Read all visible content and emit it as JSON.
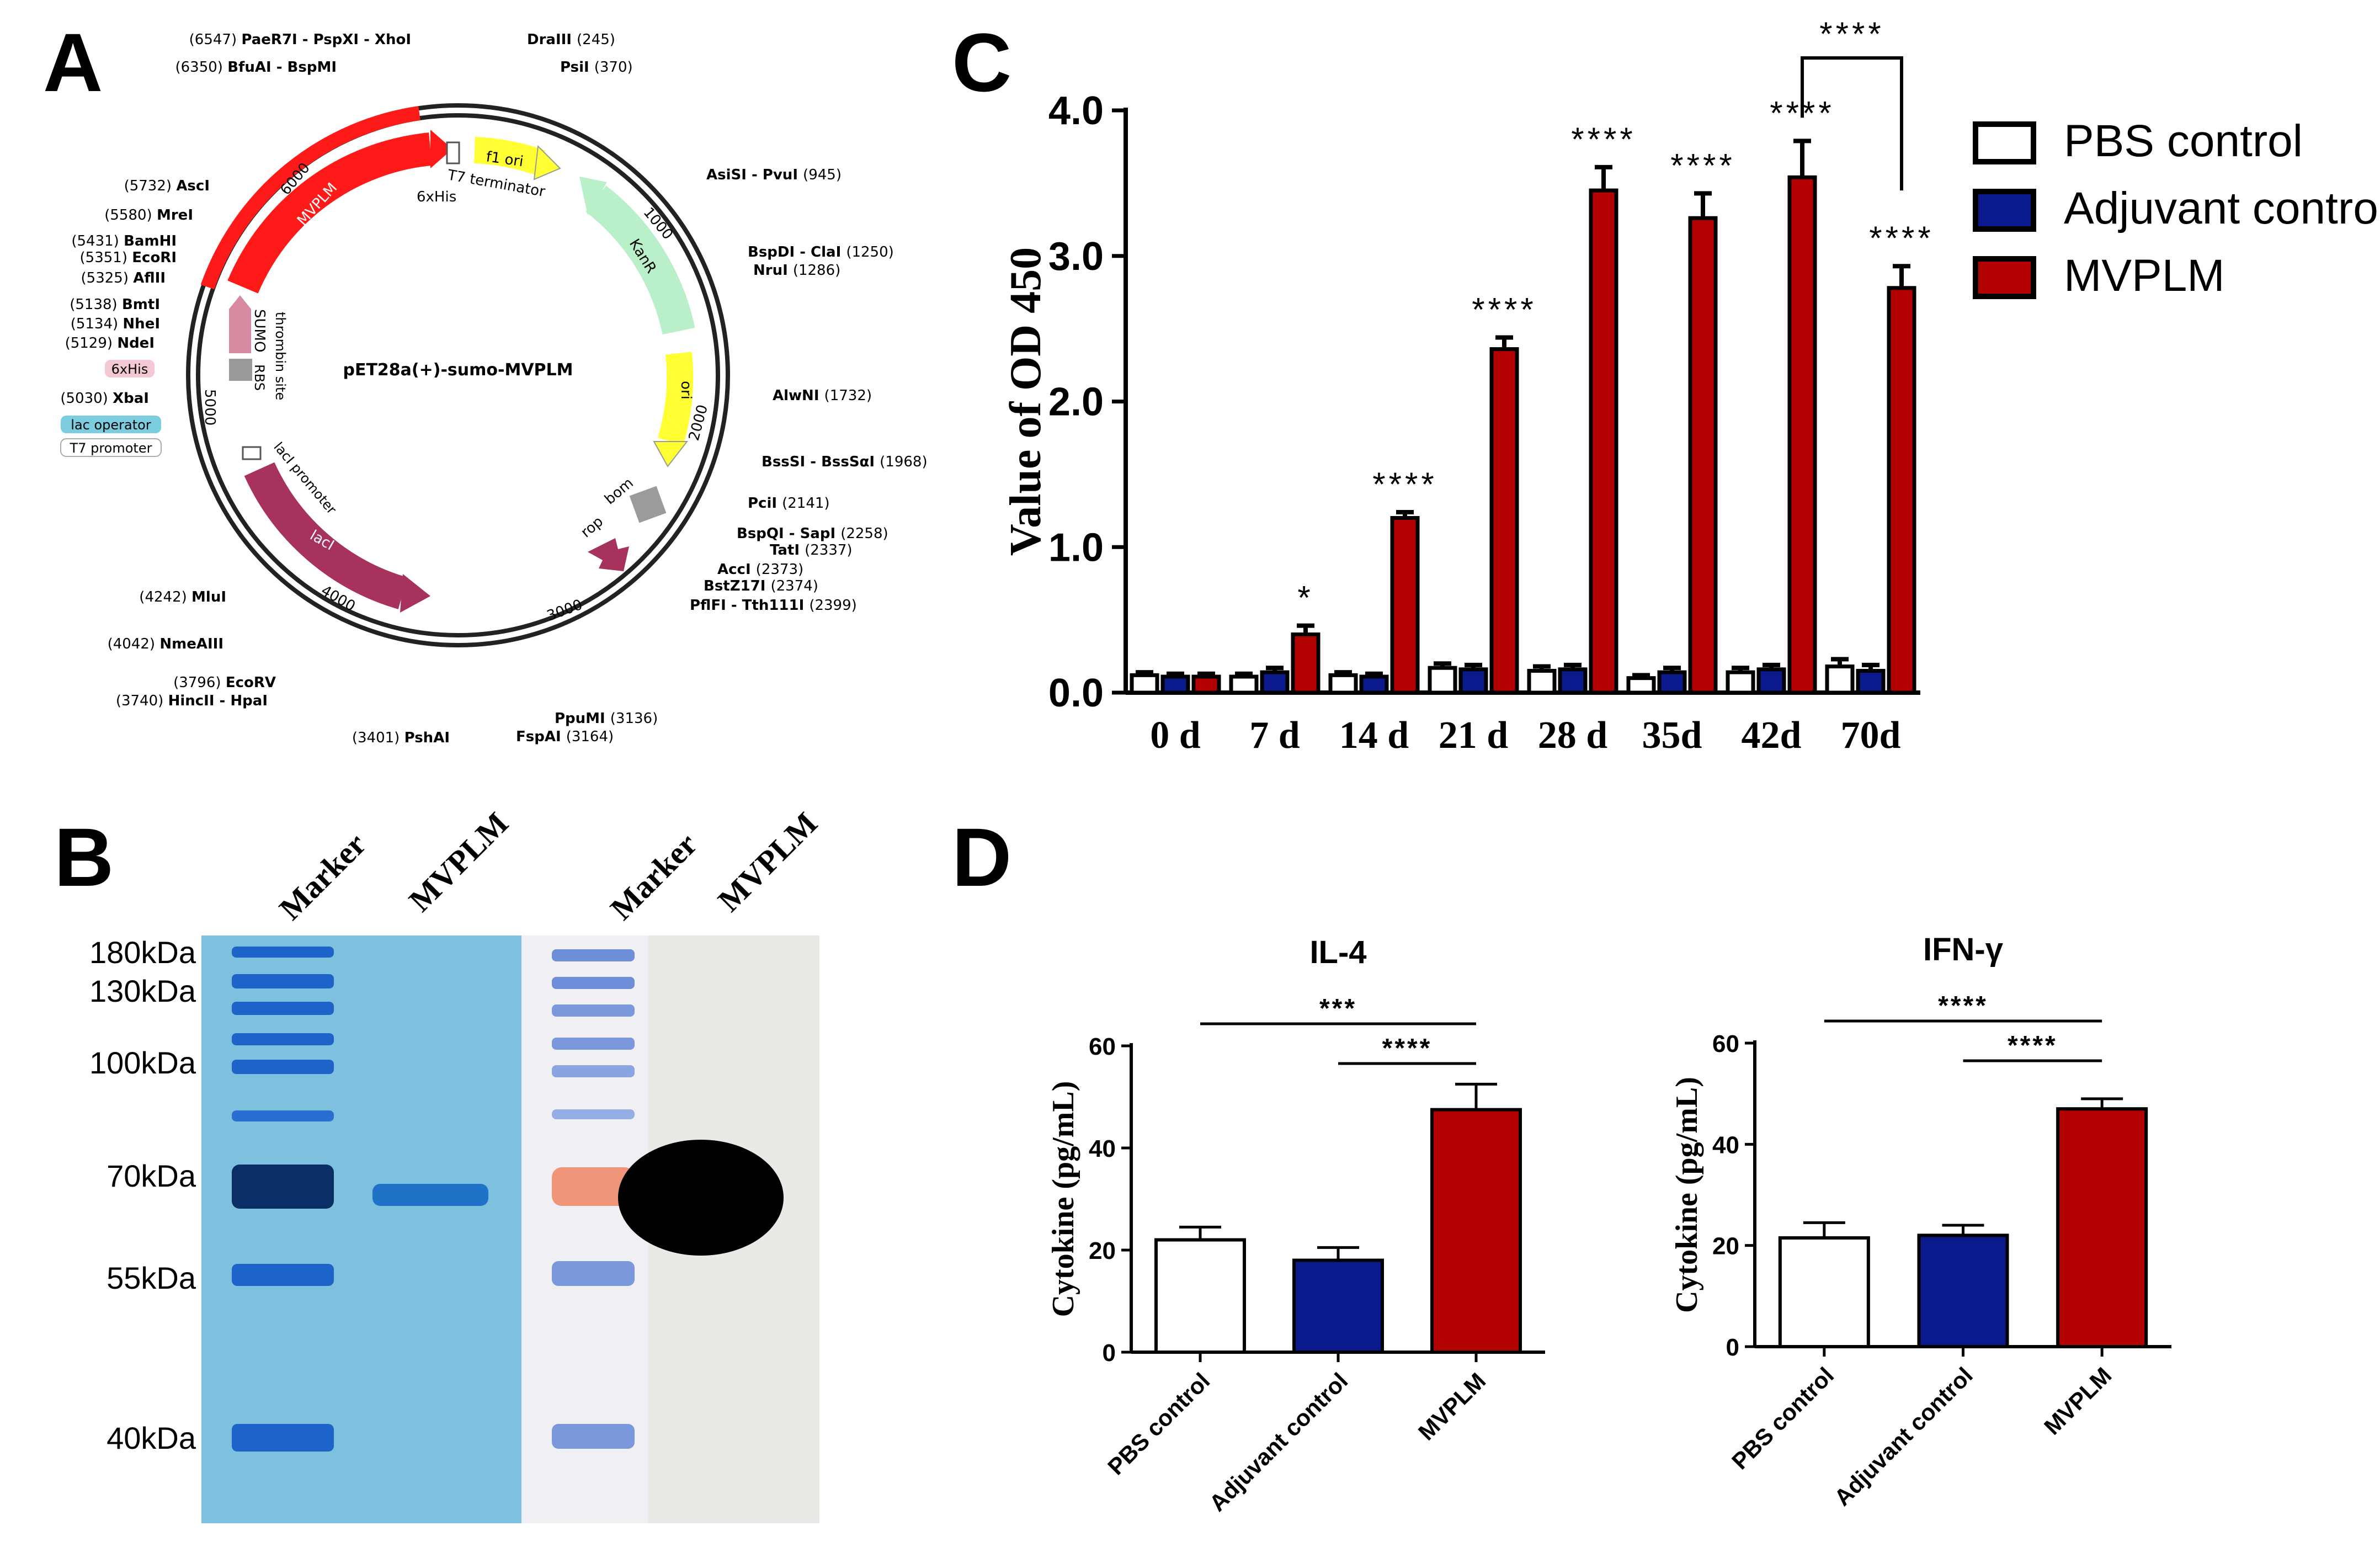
{
  "panels": {
    "A": "A",
    "B": "B",
    "C": "C",
    "D": "D"
  },
  "colors": {
    "pbs": "#ffffff",
    "adjuvant": "#0a1a8c",
    "mvplm": "#b30000",
    "mvplm_feature": "#ff1a1a",
    "kanr": "#b9f0c9",
    "ori": "#ffff33",
    "f1ori": "#ffff33",
    "lacI": "#a8325e",
    "sumo": "#d88aa0",
    "gel_bg": "#7dc1de",
    "gel_band": "#1e64c8",
    "wb_bg": "#ebe9e6"
  },
  "plasmid": {
    "name": "pET28a(+)-sumo-MVPLM",
    "features": [
      {
        "label": "MVPLM"
      },
      {
        "label": "f1 ori"
      },
      {
        "label": "KanR"
      },
      {
        "label": "ori"
      },
      {
        "label": "lacI"
      },
      {
        "label": "rop"
      },
      {
        "label": "bom"
      },
      {
        "label": "SUMO"
      },
      {
        "label": "thrombin site"
      },
      {
        "label": "RBS"
      },
      {
        "label": "T7 terminator"
      },
      {
        "label": "6xHis"
      },
      {
        "label": "lacI promoter"
      }
    ],
    "ticks": [
      "1000",
      "2000",
      "3000",
      "4000",
      "5000",
      "6000"
    ],
    "sites_right": [
      {
        "pos": "(245)",
        "name": "DraIII"
      },
      {
        "pos": "(370)",
        "name": "PsiI"
      },
      {
        "pos": "(945)",
        "name": "AsiSI - PvuI"
      },
      {
        "pos": "(1250)",
        "name": "BspDI - ClaI"
      },
      {
        "pos": "(1286)",
        "name": "NruI"
      },
      {
        "pos": "(1732)",
        "name": "AlwNI"
      },
      {
        "pos": "(1968)",
        "name": "BssSI - BssSαI"
      },
      {
        "pos": "(2141)",
        "name": "PciI"
      },
      {
        "pos": "(2258)",
        "name": "BspQI - SapI"
      },
      {
        "pos": "(2337)",
        "name": "TatI"
      },
      {
        "pos": "(2373)",
        "name": "AccI"
      },
      {
        "pos": "(2374)",
        "name": "BstZ17I"
      },
      {
        "pos": "(2399)",
        "name": "PflFI - Tth111I"
      },
      {
        "pos": "(3136)",
        "name": "PpuMI"
      },
      {
        "pos": "(3164)",
        "name": "FspAI"
      }
    ],
    "sites_left": [
      {
        "pos": "(6547)",
        "name": "PaeR7I - PspXI - XhoI"
      },
      {
        "pos": "(6350)",
        "name": "BfuAI - BspMI"
      },
      {
        "pos": "(5732)",
        "name": "AscI"
      },
      {
        "pos": "(5580)",
        "name": "MreI"
      },
      {
        "pos": "(5431)",
        "name": "BamHI"
      },
      {
        "pos": "(5351)",
        "name": "EcoRI"
      },
      {
        "pos": "(5325)",
        "name": "AflII"
      },
      {
        "pos": "(5138)",
        "name": "BmtI"
      },
      {
        "pos": "(5134)",
        "name": "NheI"
      },
      {
        "pos": "(5129)",
        "name": "NdeI"
      },
      {
        "pos": "(5030)",
        "name": "XbaI"
      },
      {
        "pos": "(4242)",
        "name": "MluI"
      },
      {
        "pos": "(4042)",
        "name": "NmeAIII"
      },
      {
        "pos": "(3796)",
        "name": "EcoRV"
      },
      {
        "pos": "(3740)",
        "name": "HincII - HpaI"
      },
      {
        "pos": "(3401)",
        "name": "PshAI"
      }
    ],
    "left_boxes": {
      "his": "6xHis",
      "lac": "lac operator",
      "t7": "T7 promoter"
    }
  },
  "gel": {
    "lanes": [
      "Marker",
      "MVPLM",
      "Marker",
      "MVPLM"
    ],
    "mw_labels": [
      "180kDa",
      "130kDa",
      "100kDa",
      "70kDa",
      "55kDa",
      "40kDa"
    ]
  },
  "chart_data": [
    {
      "panel": "C",
      "type": "bar",
      "title": "",
      "xlabel": "",
      "ylabel": "Value of OD 450",
      "ylim": [
        0,
        4.0
      ],
      "yticks": [
        "0.0",
        "1.0",
        "2.0",
        "3.0",
        "4.0"
      ],
      "categories": [
        "0 d",
        "7 d",
        "14 d",
        "21 d",
        "28 d",
        "35d",
        "42d",
        "70d"
      ],
      "series": [
        {
          "name": "PBS control",
          "values": [
            0.12,
            0.11,
            0.12,
            0.17,
            0.15,
            0.1,
            0.14,
            0.18
          ],
          "errors": [
            0.02,
            0.02,
            0.02,
            0.03,
            0.03,
            0.02,
            0.03,
            0.05
          ]
        },
        {
          "name": "Adjuvant control",
          "values": [
            0.11,
            0.14,
            0.11,
            0.16,
            0.16,
            0.14,
            0.16,
            0.15
          ],
          "errors": [
            0.02,
            0.03,
            0.02,
            0.03,
            0.03,
            0.03,
            0.03,
            0.04
          ]
        },
        {
          "name": "MVPLM",
          "values": [
            0.11,
            0.4,
            1.2,
            2.36,
            3.45,
            3.26,
            3.54,
            2.78
          ],
          "errors": [
            0.02,
            0.06,
            0.04,
            0.08,
            0.16,
            0.17,
            0.25,
            0.15
          ]
        }
      ],
      "significance": [
        "",
        "*",
        "****",
        "****",
        "****",
        "****",
        "****",
        "****"
      ],
      "bracket_label": "****",
      "legend": "top-right"
    },
    {
      "panel": "D",
      "type": "bar",
      "title": "IL-4",
      "ylabel": "Cytokine (pg/mL)",
      "ylim": [
        0,
        60
      ],
      "yticks": [
        "0",
        "20",
        "40",
        "60"
      ],
      "categories": [
        "PBS control",
        "Adjuvant control",
        "MVPLM"
      ],
      "values": [
        22,
        18,
        47.5
      ],
      "errors": [
        2.5,
        2.5,
        5
      ],
      "brackets": [
        {
          "from": "PBS control",
          "to": "MVPLM",
          "label": "***"
        },
        {
          "from": "Adjuvant control",
          "to": "MVPLM",
          "label": "****"
        }
      ]
    },
    {
      "panel": "D",
      "type": "bar",
      "title": "IFN-γ",
      "ylabel": "Cytokine (pg/mL)",
      "ylim": [
        0,
        60
      ],
      "yticks": [
        "0",
        "20",
        "40",
        "60"
      ],
      "categories": [
        "PBS control",
        "Adjuvant control",
        "MVPLM"
      ],
      "values": [
        21.5,
        22,
        47
      ],
      "errors": [
        3,
        2,
        2
      ],
      "brackets": [
        {
          "from": "PBS control",
          "to": "MVPLM",
          "label": "****"
        },
        {
          "from": "Adjuvant control",
          "to": "MVPLM",
          "label": "****"
        }
      ]
    }
  ]
}
